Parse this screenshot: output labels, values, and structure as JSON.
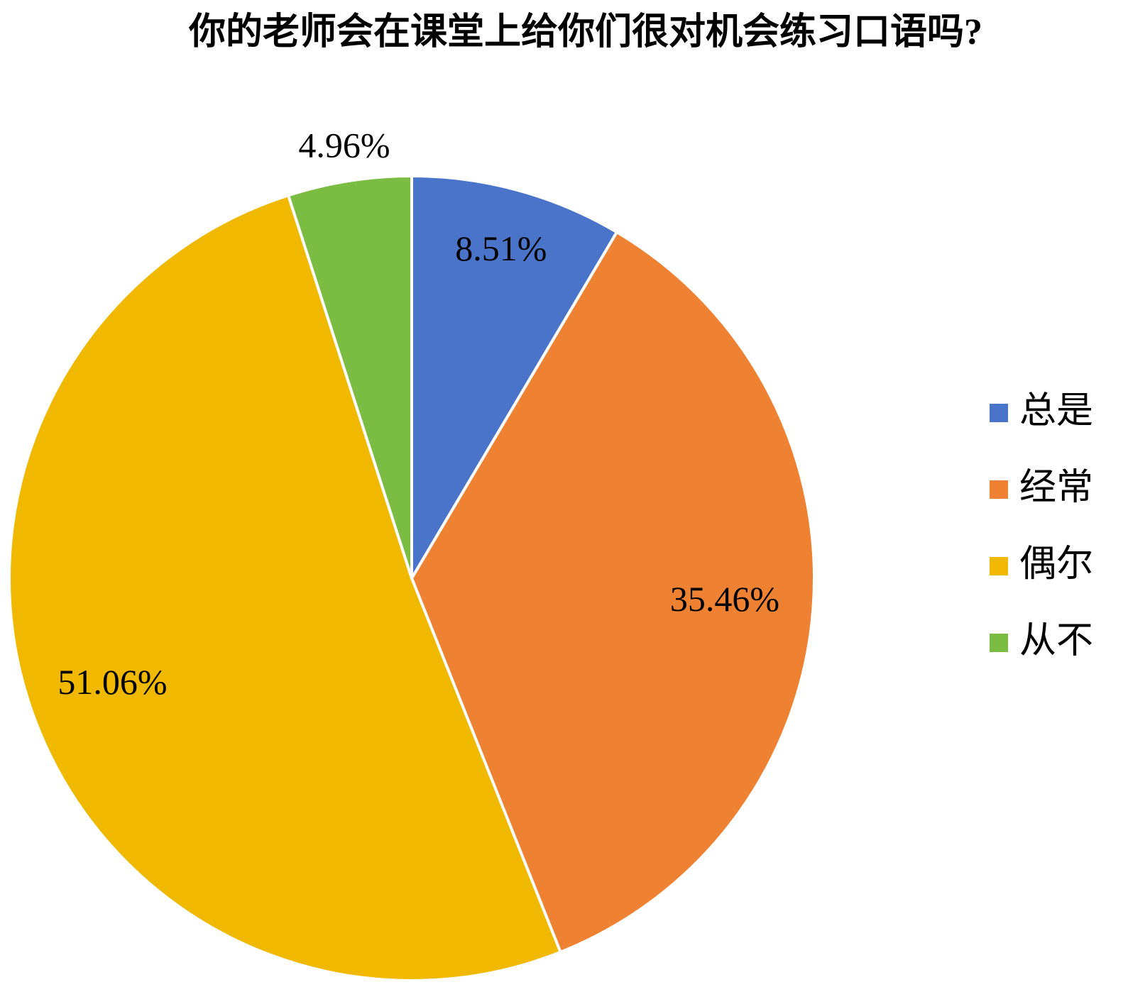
{
  "chart_data": {
    "type": "pie",
    "title": "你的老师会在课堂上给你们很对机会练习口语吗?",
    "categories": [
      "总是",
      "经常",
      "偶尔",
      "从不"
    ],
    "values": [
      8.51,
      35.46,
      51.06,
      4.96
    ],
    "value_labels": [
      "8.51%",
      "35.46%",
      "51.06%",
      "4.96%"
    ],
    "colors": [
      "#4a74c9",
      "#ef8133",
      "#f1b800",
      "#7bbd43"
    ],
    "legend": "right"
  }
}
